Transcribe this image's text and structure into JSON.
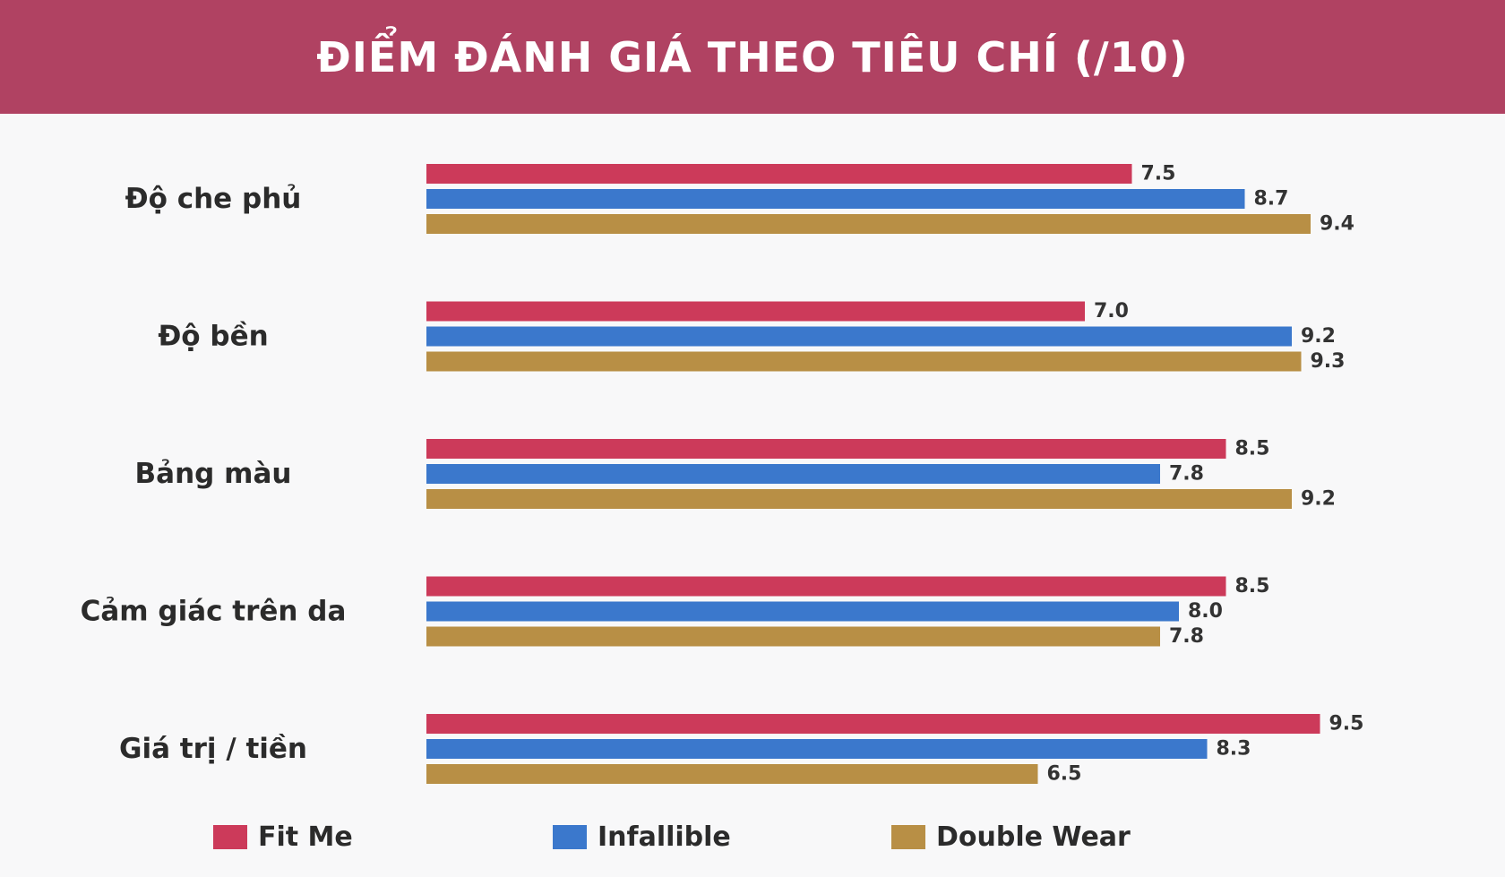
{
  "header": {
    "title": "ĐIỂM ĐÁNH GIÁ THEO TIÊU CHÍ (/10)"
  },
  "chart_data": {
    "type": "bar",
    "orientation": "horizontal",
    "title": "ĐIỂM ĐÁNH GIÁ THEO TIÊU CHÍ (/10)",
    "categories": [
      "Độ che phủ",
      "Độ bền",
      "Bảng màu",
      "Cảm giác trên da",
      "Giá trị / tiền"
    ],
    "series": [
      {
        "name": "Fit Me",
        "color": "#cc3a5a",
        "values": [
          7.5,
          7.0,
          8.5,
          8.5,
          9.5
        ]
      },
      {
        "name": "Infallible",
        "color": "#3b78cc",
        "values": [
          8.7,
          9.2,
          7.8,
          8.0,
          8.3
        ]
      },
      {
        "name": "Double Wear",
        "color": "#b88f45",
        "values": [
          9.4,
          9.3,
          9.2,
          7.8,
          6.5
        ]
      }
    ],
    "value_labels": [
      [
        "7.5",
        "7.0",
        "8.5",
        "8.5",
        "9.5"
      ],
      [
        "8.7",
        "9.2",
        "7.8",
        "8.0",
        "8.3"
      ],
      [
        "9.4",
        "9.3",
        "9.2",
        "7.8",
        "6.5"
      ]
    ],
    "xlim": [
      0,
      10
    ],
    "grid": false,
    "legend_position": "bottom"
  },
  "legend": {
    "items": [
      {
        "label": "Fit Me",
        "color": "#cc3a5a"
      },
      {
        "label": "Infallible",
        "color": "#3b78cc"
      },
      {
        "label": "Double Wear",
        "color": "#b88f45"
      }
    ]
  }
}
